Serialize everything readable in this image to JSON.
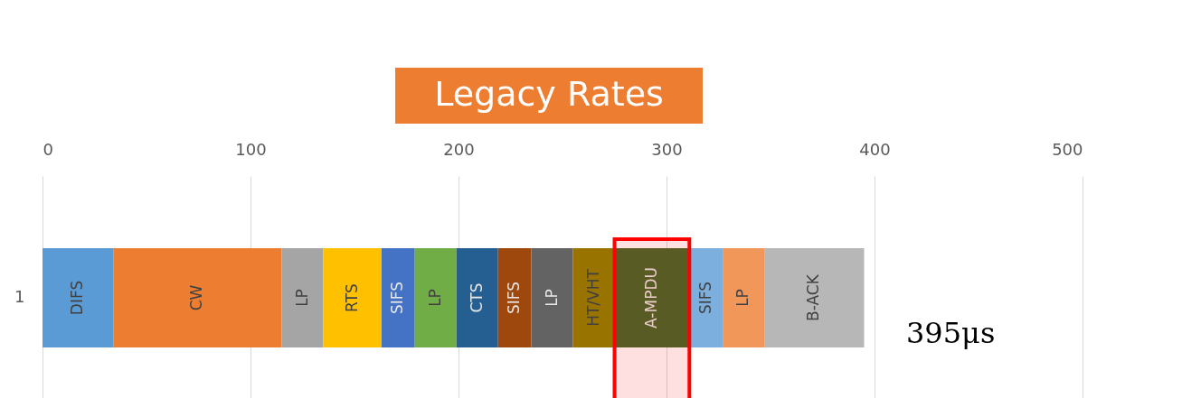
{
  "chart_data": {
    "type": "bar",
    "orientation": "horizontal",
    "stacked": true,
    "categories": [
      "1"
    ],
    "series": [
      {
        "name": "DIFS",
        "color": "#5b9bd5",
        "values": [
          34
        ]
      },
      {
        "name": "CW",
        "color": "#ed7d31",
        "values": [
          81
        ]
      },
      {
        "name": "LP",
        "color": "#a5a5a5",
        "values": [
          20
        ]
      },
      {
        "name": "RTS",
        "color": "#ffc000",
        "values": [
          28
        ]
      },
      {
        "name": "SIFS",
        "color": "#4472c4",
        "values": [
          16
        ]
      },
      {
        "name": "LP",
        "color": "#70ad47",
        "values": [
          20
        ]
      },
      {
        "name": "CTS",
        "color": "#255e91",
        "values": [
          20
        ]
      },
      {
        "name": "SIFS",
        "color": "#9e480e",
        "values": [
          16
        ]
      },
      {
        "name": "LP",
        "color": "#636363",
        "values": [
          20
        ]
      },
      {
        "name": "HT/VHT",
        "color": "#997300",
        "values": [
          20
        ]
      },
      {
        "name": "A-MPDU",
        "color": "#43682b",
        "values": [
          36
        ]
      },
      {
        "name": "SIFS",
        "color": "#7cafdd",
        "values": [
          16
        ]
      },
      {
        "name": "LP",
        "color": "#f1975a",
        "values": [
          20
        ]
      },
      {
        "name": "B-ACK",
        "color": "#b7b7b7",
        "values": [
          48
        ]
      }
    ],
    "xlim": [
      0,
      500
    ],
    "xticks": [
      0,
      100,
      200,
      300,
      400,
      500
    ],
    "grid": "x",
    "legend": false,
    "bands": [
      {
        "axis": "x",
        "from": 275,
        "to": 311,
        "color": "#ff0000"
      }
    ],
    "annotations": [
      "Legacy Rates",
      "395μs"
    ]
  }
}
